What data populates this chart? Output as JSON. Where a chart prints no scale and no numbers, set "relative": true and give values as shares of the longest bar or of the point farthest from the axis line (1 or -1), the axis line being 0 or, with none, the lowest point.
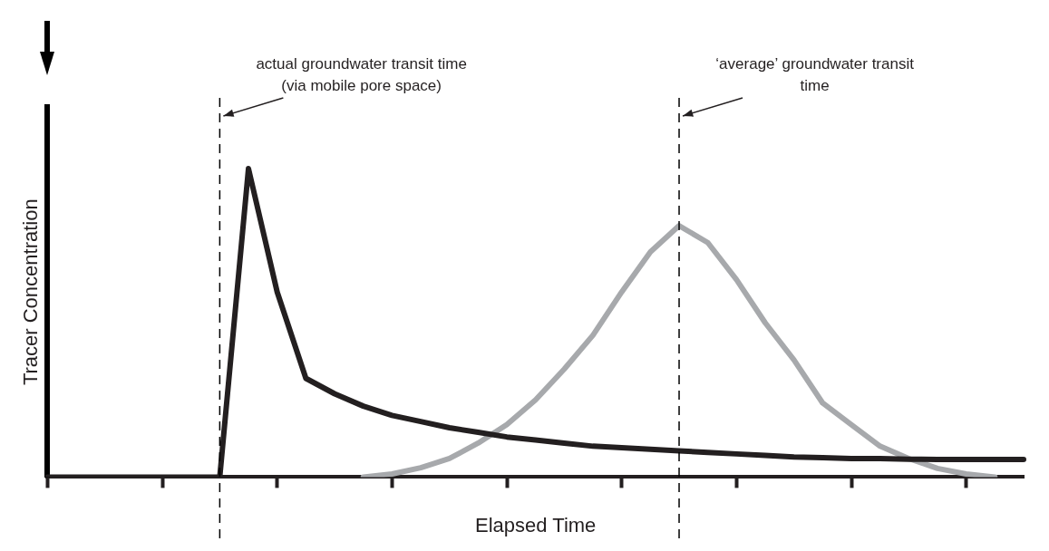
{
  "chart_data": {
    "type": "line",
    "relative": true,
    "xlabel": "Elapsed Time",
    "ylabel": "Tracer Concentration",
    "categories": [
      null,
      null,
      null,
      null,
      null,
      null,
      null,
      null,
      null,
      null,
      null,
      null,
      null,
      null,
      null,
      null,
      null,
      null,
      null,
      null,
      null,
      null,
      null,
      null,
      null,
      null,
      null,
      null,
      null,
      null,
      null,
      null,
      null,
      null,
      null
    ],
    "grid": false,
    "legend": false,
    "marker": "none",
    "line_style": "solid",
    "series": [
      {
        "color": "#231f20",
        "values": [
          0,
          0,
          0,
          0,
          0,
          0,
          0,
          1,
          0.6,
          0.32,
          0.27,
          0.23,
          0.2,
          0.18,
          0.16,
          0.145,
          0.13,
          0.12,
          0.11,
          0.1,
          0.095,
          0.09,
          0.085,
          0.08,
          0.075,
          0.07,
          0.065,
          0.063,
          0.06,
          0.06,
          0.058,
          0.057,
          0.057,
          0.057,
          0.057
        ]
      },
      {
        "color": "#a7a9ac",
        "values": [
          null,
          null,
          null,
          null,
          null,
          null,
          null,
          null,
          null,
          null,
          null,
          0,
          0.01,
          0.03,
          0.06,
          0.11,
          0.17,
          0.25,
          0.35,
          0.46,
          0.6,
          0.73,
          0.815,
          0.76,
          0.64,
          0.5,
          0.38,
          0.24,
          0.17,
          0.1,
          0.06,
          0.028,
          0.01,
          0,
          null
        ]
      }
    ],
    "annotations": [
      "actual groundwater transit time (via mobile pore space)",
      "‘average’ groundwater transit time"
    ]
  }
}
